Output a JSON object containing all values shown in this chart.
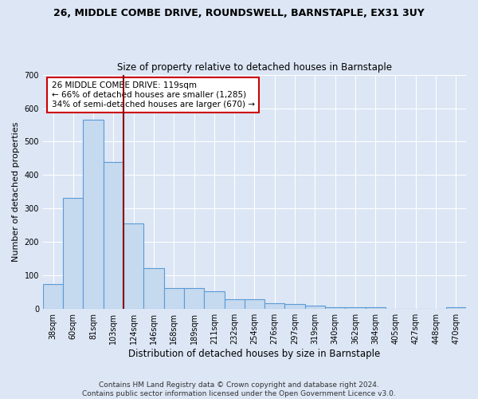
{
  "title": "26, MIDDLE COMBE DRIVE, ROUNDSWELL, BARNSTAPLE, EX31 3UY",
  "subtitle": "Size of property relative to detached houses in Barnstaple",
  "xlabel": "Distribution of detached houses by size in Barnstaple",
  "ylabel": "Number of detached properties",
  "footer_line1": "Contains HM Land Registry data © Crown copyright and database right 2024.",
  "footer_line2": "Contains public sector information licensed under the Open Government Licence v3.0.",
  "bar_labels": [
    "38sqm",
    "60sqm",
    "81sqm",
    "103sqm",
    "124sqm",
    "146sqm",
    "168sqm",
    "189sqm",
    "211sqm",
    "232sqm",
    "254sqm",
    "276sqm",
    "297sqm",
    "319sqm",
    "340sqm",
    "362sqm",
    "384sqm",
    "405sqm",
    "427sqm",
    "448sqm",
    "470sqm"
  ],
  "bar_values": [
    75,
    332,
    565,
    440,
    255,
    122,
    63,
    63,
    52,
    28,
    28,
    17,
    15,
    11,
    5,
    5,
    5,
    1,
    1,
    1,
    5
  ],
  "bar_color": "#c5d9ef",
  "bar_edgecolor": "#5b9bd5",
  "bg_color": "#dce6f5",
  "plot_bg_color": "#dce6f5",
  "grid_color": "#ffffff",
  "vline_color": "#8b0000",
  "vline_x_idx": 3.5,
  "annotation_text_line1": "26 MIDDLE COMBE DRIVE: 119sqm",
  "annotation_text_line2": "← 66% of detached houses are smaller (1,285)",
  "annotation_text_line3": "34% of semi-detached houses are larger (670) →",
  "annotation_box_color": "#ffffff",
  "annotation_box_edgecolor": "#cc0000",
  "ylim": [
    0,
    700
  ],
  "yticks": [
    0,
    100,
    200,
    300,
    400,
    500,
    600,
    700
  ],
  "title_fontsize": 9,
  "subtitle_fontsize": 8.5,
  "ylabel_fontsize": 8,
  "xlabel_fontsize": 8.5,
  "tick_fontsize": 7,
  "annotation_fontsize": 7.5,
  "footer_fontsize": 6.5
}
